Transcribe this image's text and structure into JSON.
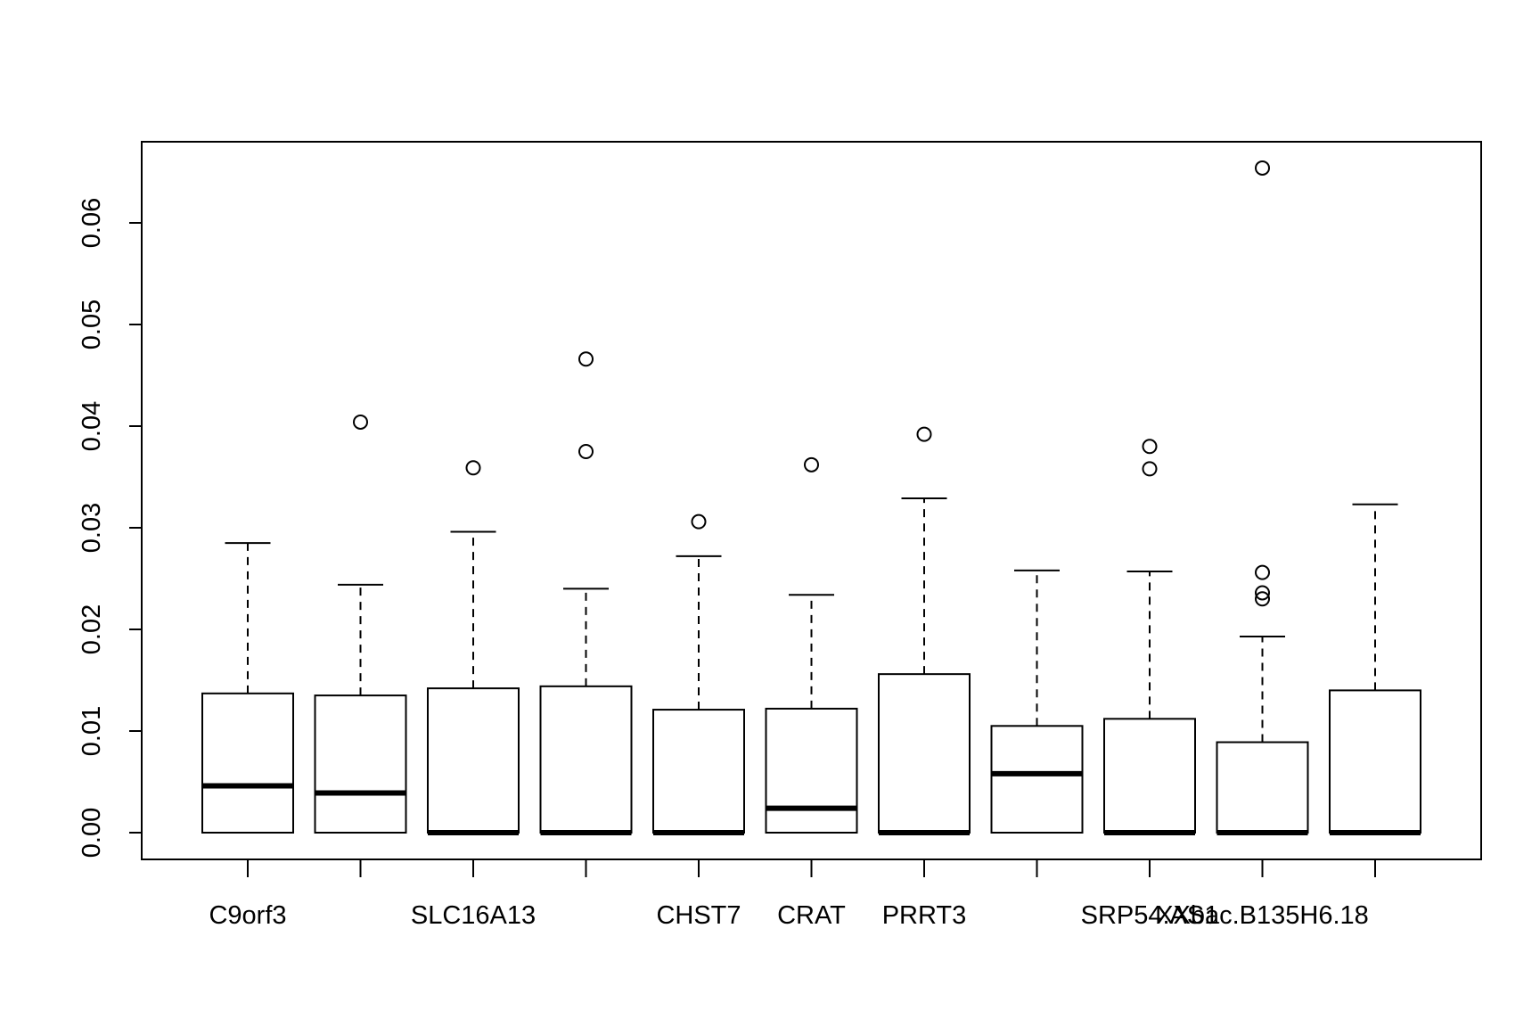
{
  "chart_data": {
    "type": "boxplot",
    "title": "",
    "xlabel": "",
    "ylabel": "",
    "ylim": [
      -0.0026,
      0.0685
    ],
    "y_ticks": [
      0.0,
      0.01,
      0.02,
      0.03,
      0.04,
      0.05,
      0.06
    ],
    "y_tick_labels": [
      "0.00",
      "0.01",
      "0.02",
      "0.03",
      "0.04",
      "0.05",
      "0.06"
    ],
    "grid": false,
    "boxes": [
      {
        "label": "C9orf3",
        "whisker_low": 0.0,
        "q1": 0.0,
        "median": 0.0046,
        "q3": 0.0137,
        "whisker_high": 0.0285,
        "outliers": []
      },
      {
        "label": "",
        "whisker_low": 0.0,
        "q1": 0.0,
        "median": 0.0039,
        "q3": 0.0135,
        "whisker_high": 0.0244,
        "outliers": [
          0.0404
        ]
      },
      {
        "label": "SLC16A13",
        "whisker_low": 0.0,
        "q1": 0.0,
        "median": 0.0,
        "q3": 0.0142,
        "whisker_high": 0.0296,
        "outliers": [
          0.0359
        ]
      },
      {
        "label": "",
        "whisker_low": 0.0,
        "q1": 0.0,
        "median": 0.0,
        "q3": 0.0144,
        "whisker_high": 0.024,
        "outliers": [
          0.0375,
          0.0466
        ]
      },
      {
        "label": "CHST7",
        "whisker_low": 0.0,
        "q1": 0.0,
        "median": 0.0,
        "q3": 0.0121,
        "whisker_high": 0.0272,
        "outliers": [
          0.0306
        ]
      },
      {
        "label": "CRAT",
        "whisker_low": 0.0,
        "q1": 0.0,
        "median": 0.0024,
        "q3": 0.0122,
        "whisker_high": 0.0234,
        "outliers": [
          0.0362
        ]
      },
      {
        "label": "PRRT3",
        "whisker_low": 0.0,
        "q1": 0.0,
        "median": 0.0,
        "q3": 0.0156,
        "whisker_high": 0.0329,
        "outliers": [
          0.0392
        ]
      },
      {
        "label": "",
        "whisker_low": 0.0,
        "q1": 0.0,
        "median": 0.0058,
        "q3": 0.0105,
        "whisker_high": 0.0258,
        "outliers": []
      },
      {
        "label": "SRP54.AS1",
        "whisker_low": 0.0,
        "q1": 0.0,
        "median": 0.0,
        "q3": 0.0112,
        "whisker_high": 0.0257,
        "outliers": [
          0.0358,
          0.038
        ]
      },
      {
        "label": "XXbac.B135H6.18",
        "whisker_low": 0.0,
        "q1": 0.0,
        "median": 0.0,
        "q3": 0.0089,
        "whisker_high": 0.0193,
        "outliers": [
          0.023,
          0.0236,
          0.0256,
          0.0654
        ]
      },
      {
        "label": "",
        "whisker_low": 0.0,
        "q1": 0.0,
        "median": 0.0,
        "q3": 0.014,
        "whisker_high": 0.0323,
        "outliers": []
      }
    ]
  }
}
